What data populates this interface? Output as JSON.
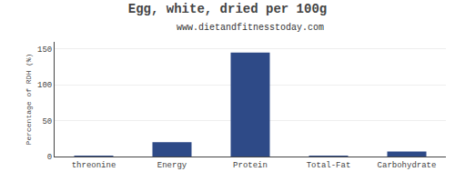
{
  "chart_data": {
    "type": "bar",
    "title": "Egg, white, dried per 100g",
    "subtitle": "www.dietandfitnesstoday.com",
    "ylabel": "Percentage of RDH (%)",
    "categories": [
      "threonine",
      "Energy",
      "Protein",
      "Total-Fat",
      "Carbohydrate"
    ],
    "values": [
      0.5,
      20,
      145,
      0.3,
      7
    ],
    "color": "#2e4a87",
    "ylim": [
      0,
      160
    ],
    "yticks": [
      0,
      50,
      100,
      150
    ],
    "grid": true
  }
}
